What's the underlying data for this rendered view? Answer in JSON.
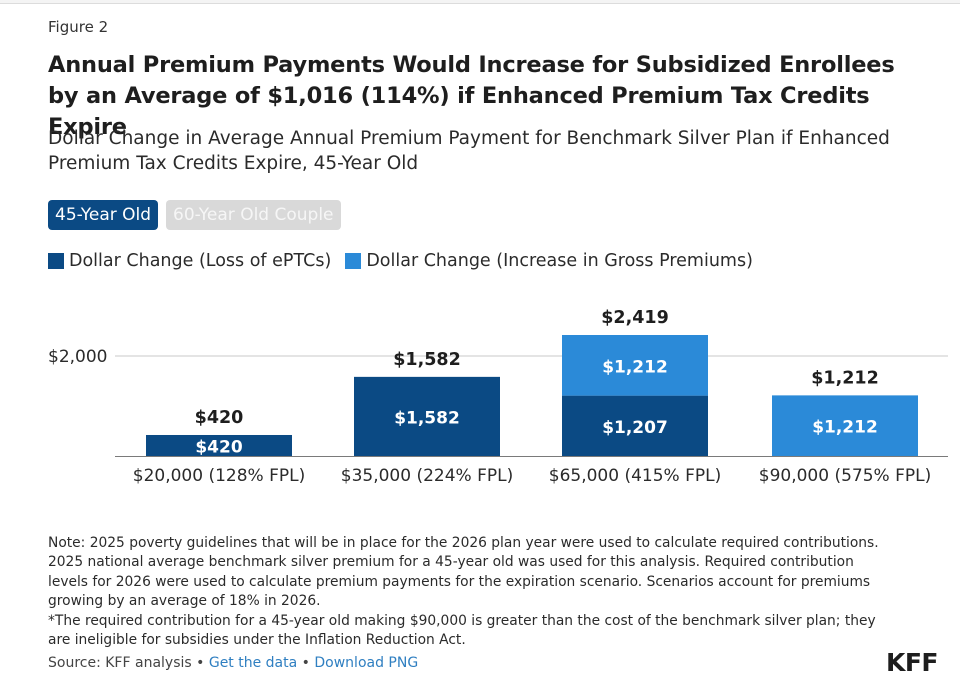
{
  "figure_label": "Figure 2",
  "title": "Annual Premium Payments Would Increase for Subsidized Enrollees by an Average of $1,016 (114%) if Enhanced Premium Tax Credits Expire",
  "subtitle": "Dollar Change in Average Annual Premium Payment for Benchmark Silver Plan if Enhanced Premium Tax Credits Expire, 45-Year Old",
  "toggles": [
    {
      "label": "45-Year Old",
      "active": true
    },
    {
      "label": "60-Year Old Couple",
      "active": false
    }
  ],
  "legend": [
    {
      "label": "Dollar Change (Loss of ePTCs)",
      "color": "#0b4a84"
    },
    {
      "label": "Dollar Change (Increase in Gross Premiums)",
      "color": "#2b8ad8"
    }
  ],
  "chart_data": {
    "type": "bar",
    "stacked": true,
    "categories": [
      "$20,000 (128% FPL)",
      "$35,000 (224% FPL)",
      "$65,000 (415% FPL)",
      "$90,000 (575% FPL)"
    ],
    "series": [
      {
        "name": "Dollar Change (Loss of ePTCs)",
        "color": "#0b4a84",
        "values": [
          420,
          1582,
          1207,
          0
        ],
        "labels": [
          "$420",
          "$1,582",
          "$1,207",
          ""
        ]
      },
      {
        "name": "Dollar Change (Increase in Gross Premiums)",
        "color": "#2b8ad8",
        "values": [
          0,
          0,
          1212,
          1212
        ],
        "labels": [
          "",
          "",
          "$1,212",
          "$1,212"
        ]
      }
    ],
    "totals": [
      420,
      1582,
      2419,
      1212
    ],
    "total_labels": [
      "$420",
      "$1,582",
      "$2,419",
      "$1,212"
    ],
    "yticks": [
      2000
    ],
    "ytick_labels": [
      "$2,000"
    ],
    "ylim": [
      0,
      2419
    ],
    "grid": true,
    "legend_position": "top-left"
  },
  "note": {
    "paragraph1": "Note: 2025 poverty guidelines that will be in place for the 2026 plan year were used to calculate required contributions. 2025 national average benchmark silver premium for a 45-year old was used for this analysis. Required contribution levels for 2026 were used to calculate premium payments for the expiration scenario. Scenarios account for premiums growing by an average of 18% in 2026.",
    "paragraph2": "*The required contribution for a 45-year old making $90,000 is greater than the cost of the benchmark silver plan; they are ineligible for subsidies under the Inflation Reduction Act."
  },
  "source": {
    "prefix": "Source: KFF analysis",
    "separator": "•",
    "link1": "Get the data",
    "link2": "Download PNG"
  },
  "logo": "KFF"
}
